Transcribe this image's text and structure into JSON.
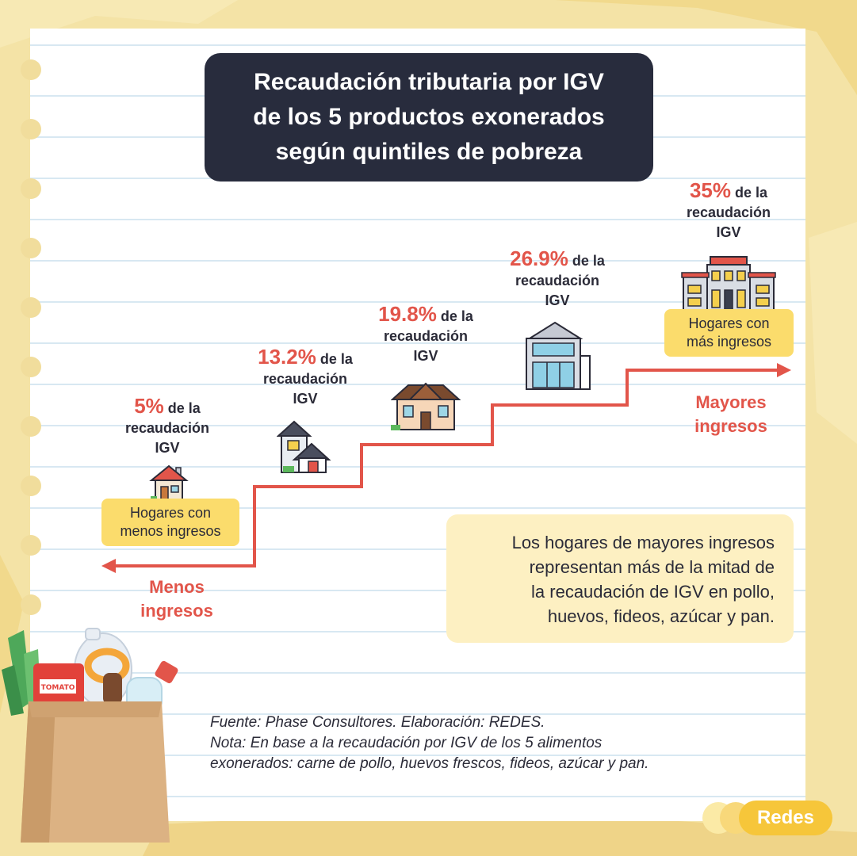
{
  "title": {
    "line1": "Recaudación tributaria por IGV",
    "line2": "de los 5 productos exonerados",
    "line3": "según quintiles de pobreza"
  },
  "chart_data": {
    "type": "step",
    "title": "Recaudación tributaria por IGV de los 5 productos exonerados según quintiles de pobreza",
    "values": [
      5,
      13.2,
      19.8,
      26.9,
      35
    ],
    "units": "%",
    "labels": [
      {
        "pct": "5%",
        "rest": "de la",
        "line2": "recaudación",
        "line3": "IGV"
      },
      {
        "pct": "13.2%",
        "rest": "de la",
        "line2": "recaudación",
        "line3": "IGV"
      },
      {
        "pct": "19.8%",
        "rest": "de la",
        "line2": "recaudación",
        "line3": "IGV"
      },
      {
        "pct": "26.9%",
        "rest": "de la",
        "line2": "recaudación",
        "line3": "IGV"
      },
      {
        "pct": "35%",
        "rest": "de la",
        "line2": "recaudación",
        "line3": "IGV"
      }
    ],
    "low_end": {
      "tag_line1": "Hogares con",
      "tag_line2": "menos ingresos",
      "arrow_line1": "Menos",
      "arrow_line2": "ingresos"
    },
    "high_end": {
      "tag_line1": "Hogares con",
      "tag_line2": "más ingresos",
      "arrow_line1": "Mayores",
      "arrow_line2": "ingresos"
    },
    "colors": {
      "accent": "#e2554a",
      "tag": "#fbdc6c",
      "title_bg": "#282c3d"
    }
  },
  "info": {
    "line1": "Los hogares de mayores ingresos",
    "line2": "representan más de la mitad de",
    "line3": "la recaudación de IGV en pollo,",
    "line4": "huevos, fideos, azúcar y pan."
  },
  "notes": {
    "source": "Fuente: Phase Consultores. Elaboración: REDES.",
    "note_line1": "Nota: En base a la recaudación por IGV de los 5 alimentos",
    "note_line2": "exonerados: carne de pollo, huevos frescos, fideos, azúcar y pan."
  },
  "logo": {
    "text": "Redes"
  },
  "bag": {
    "tomato_label": "TOMATO"
  },
  "icons": [
    "small-house-icon",
    "two-storey-house-icon",
    "gabled-house-icon",
    "modern-building-icon",
    "mansion-icon",
    "grocery-bag-icon"
  ]
}
